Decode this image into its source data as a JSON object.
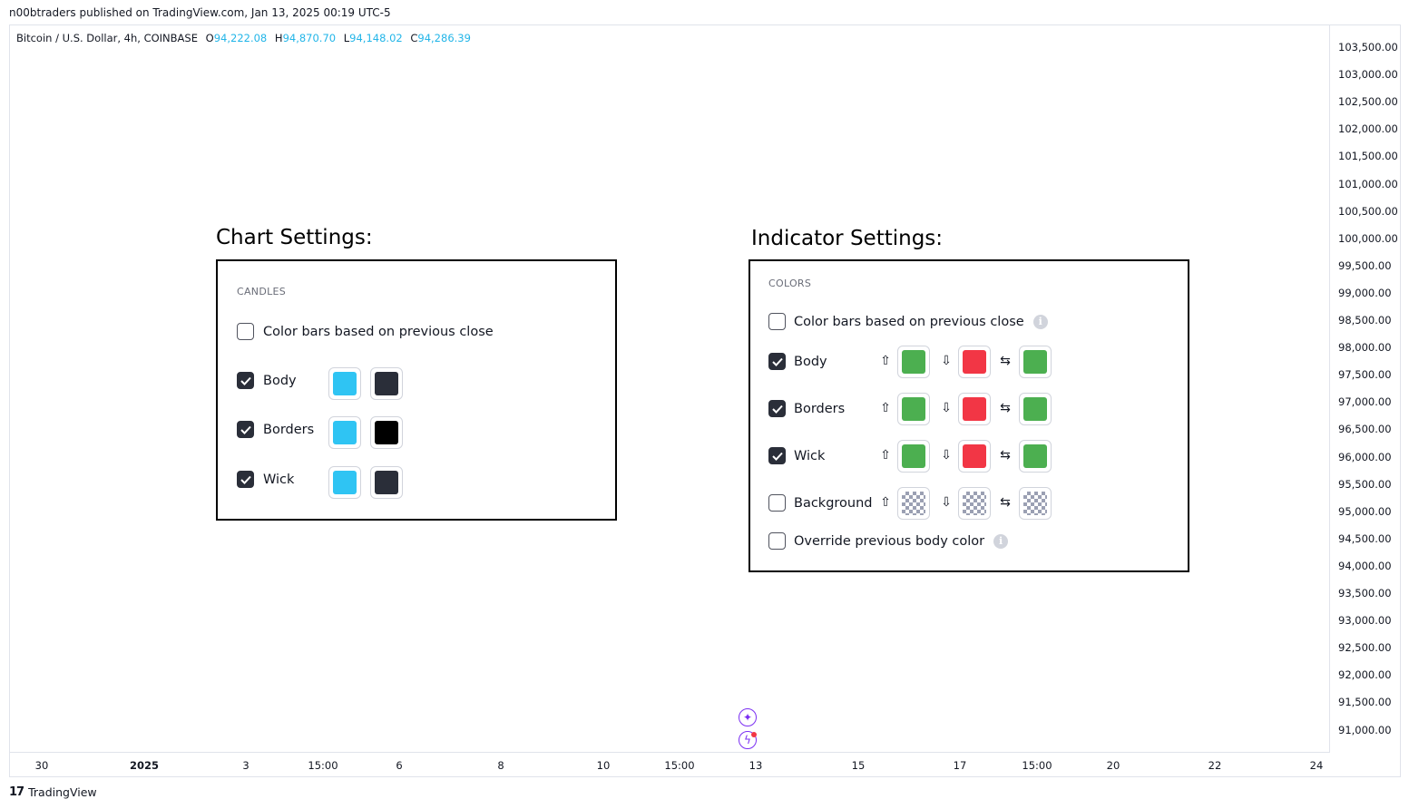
{
  "published_line": "n00btraders published on TradingView.com, Jan 13, 2025 00:19 UTC-5",
  "legend": {
    "symbol": "Bitcoin / U.S. Dollar, 4h, COINBASE",
    "open_label": "O",
    "open": "94,222.08",
    "high_label": "H",
    "high": "94,870.70",
    "low_label": "L",
    "low": "94,148.02",
    "close_label": "C",
    "close": "94,286.39"
  },
  "y_axis_ticks": [
    "103,500.00",
    "103,000.00",
    "102,500.00",
    "102,000.00",
    "101,500.00",
    "101,000.00",
    "100,500.00",
    "100,000.00",
    "99,500.00",
    "99,000.00",
    "98,500.00",
    "98,000.00",
    "97,500.00",
    "97,000.00",
    "96,500.00",
    "96,000.00",
    "95,500.00",
    "95,000.00",
    "94,500.00",
    "94,000.00",
    "93,500.00",
    "93,000.00",
    "92,500.00",
    "92,000.00",
    "91,500.00",
    "91,000.00"
  ],
  "x_axis_ticks": [
    "30",
    "2025",
    "3",
    "15:00",
    "6",
    "8",
    "10",
    "15:00",
    "13",
    "15",
    "17",
    "15:00",
    "20",
    "22",
    "24"
  ],
  "footer": {
    "brand": "TradingView",
    "mark": "17"
  },
  "chart_settings": {
    "title": "Chart Settings:",
    "section": "CANDLES",
    "color_bars_label": "Color bars based on previous close",
    "color_bars_checked": false,
    "rows": [
      {
        "label": "Body",
        "checked": true,
        "colors": [
          "#2fc4f3",
          "#2a2e39"
        ]
      },
      {
        "label": "Borders",
        "checked": true,
        "colors": [
          "#2fc4f3",
          "#000000"
        ]
      },
      {
        "label": "Wick",
        "checked": true,
        "colors": [
          "#2fc4f3",
          "#2a2e39"
        ]
      }
    ]
  },
  "indicator_settings": {
    "title": "Indicator Settings:",
    "section": "COLORS",
    "color_bars_label": "Color bars based on previous close",
    "color_bars_checked": false,
    "rows": [
      {
        "label": "Body",
        "checked": true,
        "colors": [
          "#4caf50",
          "#f23645",
          "#4caf50"
        ]
      },
      {
        "label": "Borders",
        "checked": true,
        "colors": [
          "#4caf50",
          "#f23645",
          "#4caf50"
        ]
      },
      {
        "label": "Wick",
        "checked": true,
        "colors": [
          "#4caf50",
          "#f23645",
          "#4caf50"
        ]
      },
      {
        "label": "Background",
        "checked": false,
        "colors": [
          "transparent",
          "transparent",
          "transparent"
        ]
      }
    ],
    "override_label": "Override previous body color",
    "override_checked": false,
    "arrow_up": "⇧",
    "arrow_down": "⇩",
    "arrow_neutral": "⇆",
    "info_glyph": "i"
  },
  "icons": {
    "sparkle": "sparkle-icon",
    "lightning": "lightning-icon"
  }
}
